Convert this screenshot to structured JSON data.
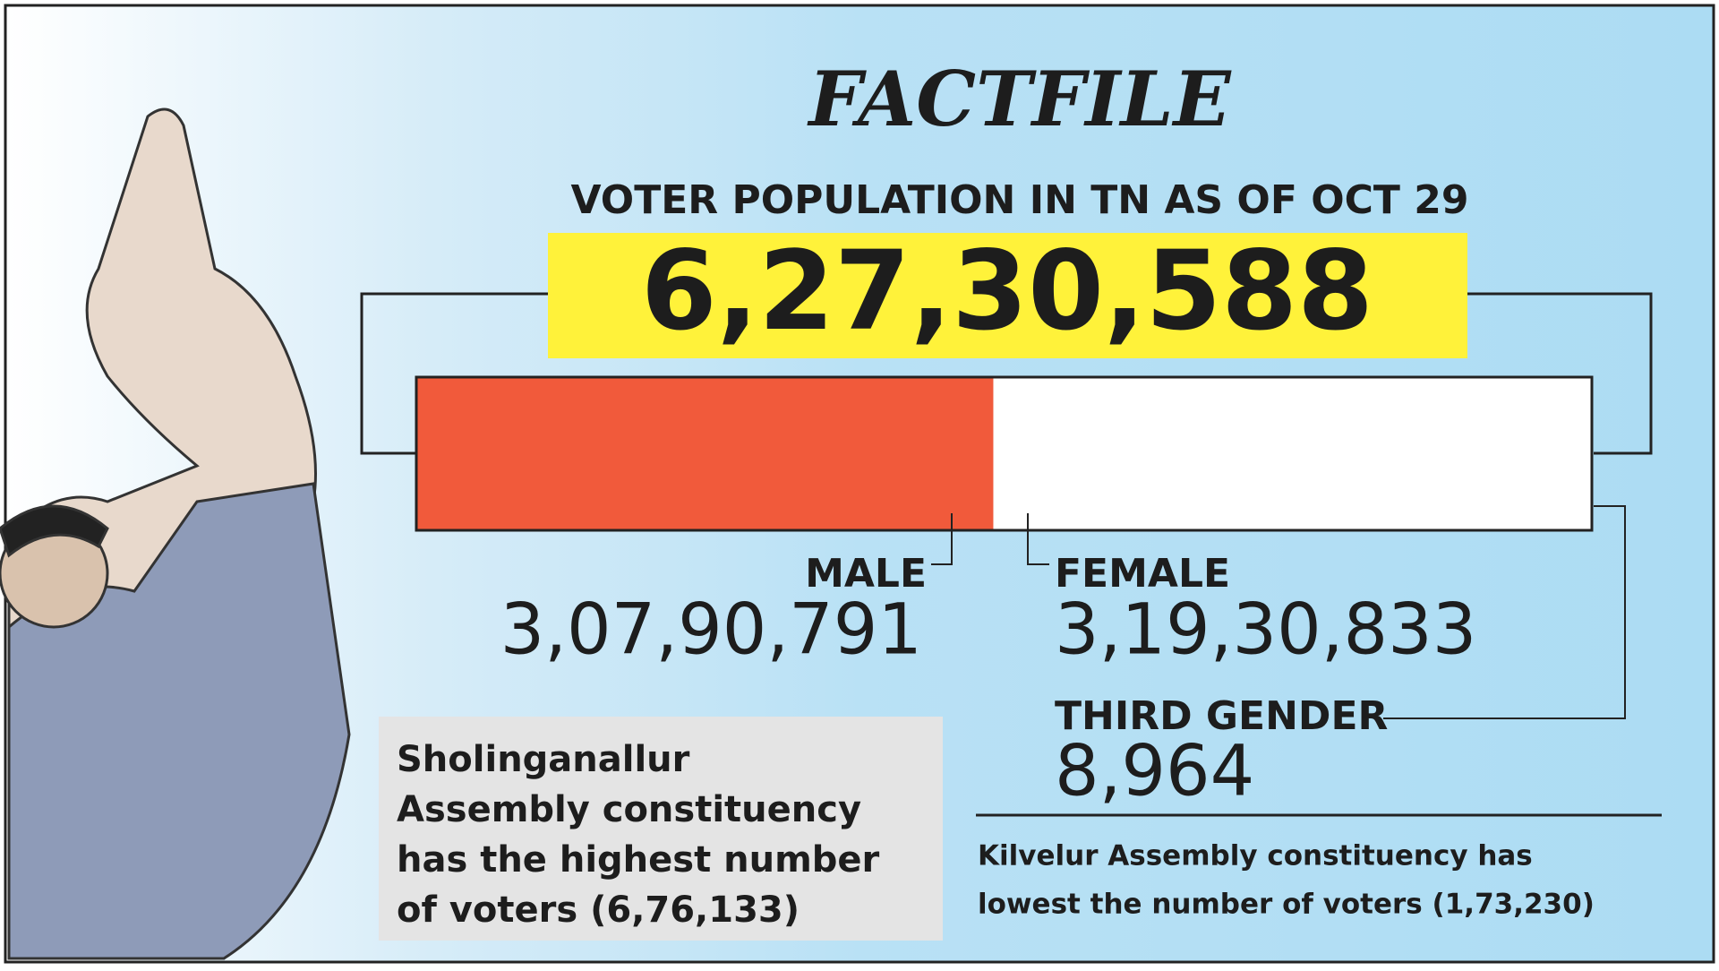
{
  "title": "FACTFILE",
  "subtitle": "VOTER POPULATION IN TN AS OF OCT 29",
  "total": {
    "value": 62730588,
    "label": "6,27,30,588"
  },
  "segments": [
    {
      "name": "MALE",
      "value": 30790791,
      "label": "3,07,90,791",
      "color": "#f15a3b"
    },
    {
      "name": "FEMALE",
      "value": 31930833,
      "label": "3,19,30,833",
      "color": "#ffffff"
    },
    {
      "name": "THIRD GENDER",
      "value": 8964,
      "label": "8,964",
      "color": "#1a1a1a"
    }
  ],
  "notes": [
    {
      "lines": [
        "Sholinganallur",
        "Assembly constituency",
        "has the highest number",
        "of voters (6,76,133)"
      ]
    },
    {
      "lines": [
        "Kilvelur Assembly constituency has",
        "lowest the number of voters (1,73,230)"
      ]
    }
  ]
}
